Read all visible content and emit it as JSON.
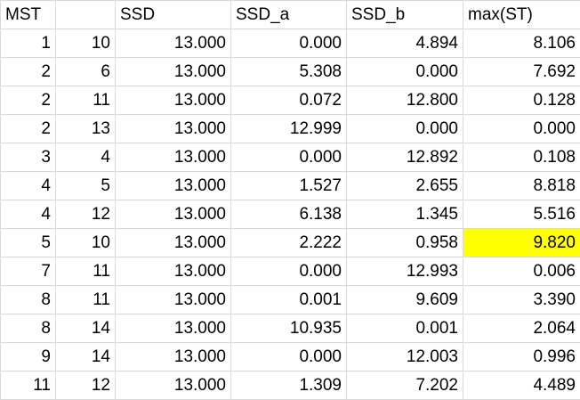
{
  "sheet": {
    "headers": [
      "MST",
      "",
      "SSD",
      "SSD_a",
      "SSD_b",
      "max(ST)"
    ],
    "rows": [
      [
        "1",
        "10",
        "13.000",
        "0.000",
        "4.894",
        "8.106"
      ],
      [
        "2",
        "6",
        "13.000",
        "5.308",
        "0.000",
        "7.692"
      ],
      [
        "2",
        "11",
        "13.000",
        "0.072",
        "12.800",
        "0.128"
      ],
      [
        "2",
        "13",
        "13.000",
        "12.999",
        "0.000",
        "0.000"
      ],
      [
        "3",
        "4",
        "13.000",
        "0.000",
        "12.892",
        "0.108"
      ],
      [
        "4",
        "5",
        "13.000",
        "1.527",
        "2.655",
        "8.818"
      ],
      [
        "4",
        "12",
        "13.000",
        "6.138",
        "1.345",
        "5.516"
      ],
      [
        "5",
        "10",
        "13.000",
        "2.222",
        "0.958",
        "9.820"
      ],
      [
        "7",
        "11",
        "13.000",
        "0.000",
        "12.993",
        "0.006"
      ],
      [
        "8",
        "11",
        "13.000",
        "0.001",
        "9.609",
        "3.390"
      ],
      [
        "8",
        "14",
        "13.000",
        "10.935",
        "0.001",
        "2.064"
      ],
      [
        "9",
        "14",
        "13.000",
        "0.000",
        "12.003",
        "0.996"
      ],
      [
        "11",
        "12",
        "13.000",
        "1.309",
        "7.202",
        "4.489"
      ]
    ],
    "highlight": {
      "row": 7,
      "col": 5,
      "color": "#ffff00"
    },
    "gridline_color": "#d9d9d9"
  }
}
